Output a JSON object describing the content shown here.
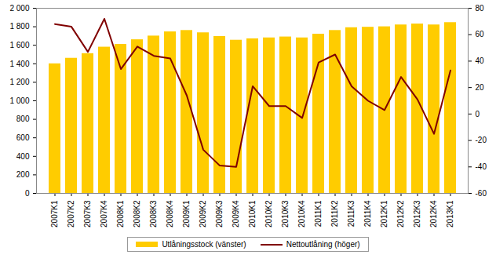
{
  "chart_data": {
    "type": "bar",
    "categories": [
      "2007K1",
      "2007K2",
      "2007K3",
      "2007K4",
      "2008K1",
      "2008K2",
      "2008K3",
      "2008K4",
      "2009K1",
      "2009K2",
      "2009K3",
      "2009K4",
      "2010K1",
      "2010K2",
      "2010K3",
      "2010K4",
      "2011K1",
      "2011K2",
      "2011K3",
      "2011K4",
      "2012K1",
      "2012K2",
      "2012K3",
      "2012K4",
      "2013K1"
    ],
    "series": [
      {
        "name": "Utlåningsstock (vänster)",
        "type": "bar",
        "color": "#ffcc00",
        "values": [
          1400,
          1460,
          1510,
          1580,
          1610,
          1660,
          1700,
          1745,
          1760,
          1735,
          1695,
          1655,
          1670,
          1680,
          1690,
          1680,
          1720,
          1760,
          1790,
          1795,
          1800,
          1820,
          1830,
          1820,
          1845
        ]
      },
      {
        "name": "Nettoutlåning (höger)",
        "type": "line",
        "axis": "y2",
        "color": "#800000",
        "values": [
          68,
          66,
          47,
          72,
          34,
          51,
          44,
          42,
          14,
          -27,
          -39,
          -40,
          21,
          6,
          6,
          -3,
          39,
          45,
          21,
          10,
          3,
          28,
          11,
          -15,
          33
        ]
      }
    ],
    "ylim": [
      0,
      2000
    ],
    "yticks": [
      0,
      200,
      400,
      600,
      800,
      {
        "value": 1000,
        "label": "1 000"
      },
      {
        "value": 1200,
        "label": "1 200"
      },
      {
        "value": 1400,
        "label": "1 400"
      },
      {
        "value": 1600,
        "label": "1 600"
      },
      {
        "value": 1800,
        "label": "1 800"
      },
      {
        "value": 2000,
        "label": "2 000"
      }
    ],
    "y2lim": [
      -60,
      80
    ],
    "y2ticks": [
      -60,
      -40,
      -20,
      0,
      20,
      40,
      60,
      80
    ],
    "grid": false,
    "legend": "bottom"
  }
}
